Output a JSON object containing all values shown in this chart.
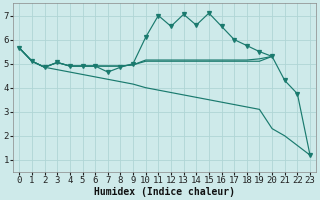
{
  "bg_color": "#ceeaea",
  "grid_color": "#b0d5d5",
  "line_color": "#1a7a6e",
  "xlabel": "Humidex (Indice chaleur)",
  "xlabel_fontsize": 7.0,
  "tick_fontsize": 6.5,
  "xlim": [
    -0.5,
    23.5
  ],
  "ylim": [
    0.5,
    7.5
  ],
  "yticks": [
    1,
    2,
    3,
    4,
    5,
    6,
    7
  ],
  "xticks": [
    0,
    1,
    2,
    3,
    4,
    5,
    6,
    7,
    8,
    9,
    10,
    11,
    12,
    13,
    14,
    15,
    16,
    17,
    18,
    19,
    20,
    21,
    22,
    23
  ],
  "line_smooth1_x": [
    0,
    1,
    2,
    3,
    4,
    5,
    6,
    7,
    8,
    9,
    10,
    11,
    12,
    13,
    14,
    15,
    16,
    17,
    18,
    19,
    20
  ],
  "line_smooth1_y": [
    5.65,
    5.1,
    4.85,
    5.05,
    4.9,
    4.9,
    4.9,
    4.9,
    4.9,
    4.95,
    5.1,
    5.1,
    5.1,
    5.1,
    5.1,
    5.1,
    5.1,
    5.1,
    5.1,
    5.1,
    5.3
  ],
  "line_smooth2_x": [
    0,
    1,
    2,
    3,
    4,
    5,
    6,
    7,
    8,
    9,
    10,
    11,
    12,
    13,
    14,
    15,
    16,
    17,
    18,
    19,
    20
  ],
  "line_smooth2_y": [
    5.65,
    5.1,
    4.85,
    5.05,
    4.9,
    4.9,
    4.9,
    4.9,
    4.9,
    4.95,
    5.15,
    5.15,
    5.15,
    5.15,
    5.15,
    5.15,
    5.15,
    5.15,
    5.15,
    5.2,
    5.3
  ],
  "line_decline_x": [
    0,
    1,
    2,
    3,
    4,
    5,
    6,
    7,
    8,
    9,
    10,
    11,
    12,
    13,
    14,
    15,
    16,
    17,
    18,
    19,
    20,
    21,
    22,
    23
  ],
  "line_decline_y": [
    5.65,
    5.1,
    4.85,
    4.75,
    4.65,
    4.55,
    4.45,
    4.35,
    4.25,
    4.15,
    4.0,
    3.9,
    3.8,
    3.7,
    3.6,
    3.5,
    3.4,
    3.3,
    3.2,
    3.1,
    2.3,
    2.0,
    1.6,
    1.2
  ],
  "line_spiky_x": [
    0,
    1,
    2,
    3,
    4,
    5,
    6,
    7,
    8,
    9,
    10,
    11,
    12,
    13,
    14,
    15,
    16,
    17,
    18,
    19,
    20,
    21,
    22,
    23
  ],
  "line_spiky_y": [
    5.65,
    5.1,
    4.85,
    5.05,
    4.9,
    4.9,
    4.9,
    4.65,
    4.85,
    5.0,
    6.1,
    7.0,
    6.55,
    7.05,
    6.6,
    7.1,
    6.55,
    6.0,
    5.75,
    5.5,
    5.3,
    4.3,
    3.75,
    1.2
  ]
}
